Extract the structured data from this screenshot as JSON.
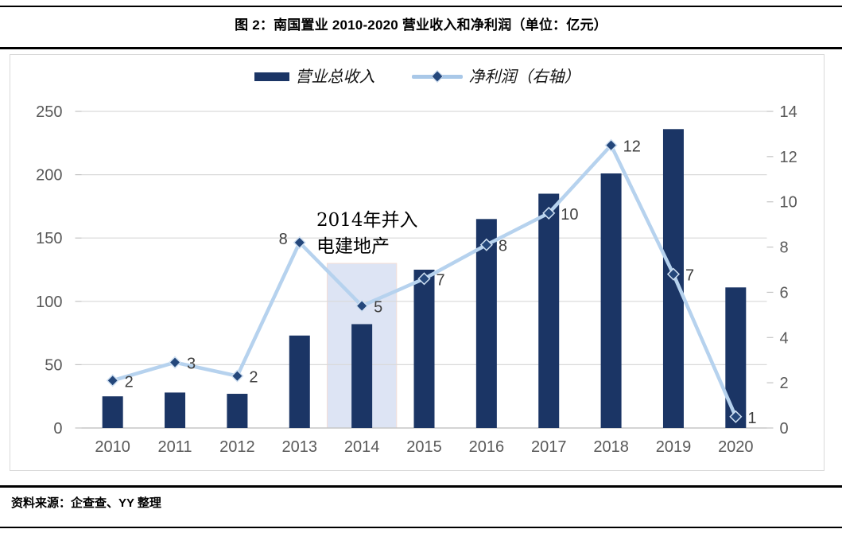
{
  "title": "图 2：南国置业 2010-2020 营业收入和净利润（单位：亿元）",
  "source_note": "资料来源：企查查、YY 整理",
  "colors": {
    "bar": "#1b3565",
    "line": "#b6d2ee",
    "marker_fill": "#24477b",
    "marker_stroke": "#cfe0f2",
    "grid": "#d9d9d9",
    "baseline": "#c6c6c6",
    "tick": "#c3c3c3",
    "axis_label": "#595959",
    "data_label": "#3f3f3f",
    "band_fill": "#d5ddf1",
    "band_border": "#f5ded6",
    "rule": "#000000"
  },
  "chart_data": {
    "type": "bar",
    "subtype": "bar-line-combo",
    "categories": [
      "2010",
      "2011",
      "2012",
      "2013",
      "2014",
      "2015",
      "2016",
      "2017",
      "2018",
      "2019",
      "2020"
    ],
    "series": [
      {
        "name": "营业总收入",
        "type": "bar",
        "axis": "left",
        "values": [
          25,
          28,
          27,
          73,
          82,
          125,
          165,
          185,
          201,
          236,
          111
        ]
      },
      {
        "name": "净利润（右轴）",
        "type": "line",
        "axis": "right",
        "values": [
          2.1,
          2.9,
          2.3,
          8.2,
          5.4,
          6.6,
          8.1,
          9.5,
          12.5,
          6.8,
          0.5
        ],
        "labels": [
          "2",
          "3",
          "2",
          "8",
          "5",
          "7",
          "8",
          "10",
          "12",
          "7",
          "1"
        ],
        "label_side": [
          "right",
          "right",
          "right",
          "left",
          "right",
          "right",
          "right",
          "right",
          "right",
          "right",
          "right"
        ]
      }
    ],
    "left_axis": {
      "min": 0,
      "max": 250,
      "step": 50,
      "ticks": [
        "0",
        "50",
        "100",
        "150",
        "200",
        "250"
      ]
    },
    "right_axis": {
      "min": 0,
      "max": 14,
      "step": 2,
      "ticks": [
        "0",
        "2",
        "4",
        "6",
        "8",
        "10",
        "12",
        "14"
      ]
    },
    "annotation": {
      "lines": [
        "2014年并入",
        "电建地产"
      ],
      "band_category": "2014",
      "band_top_left_axis": 130
    },
    "legend_position": "top-center",
    "grid": "horizontal"
  }
}
